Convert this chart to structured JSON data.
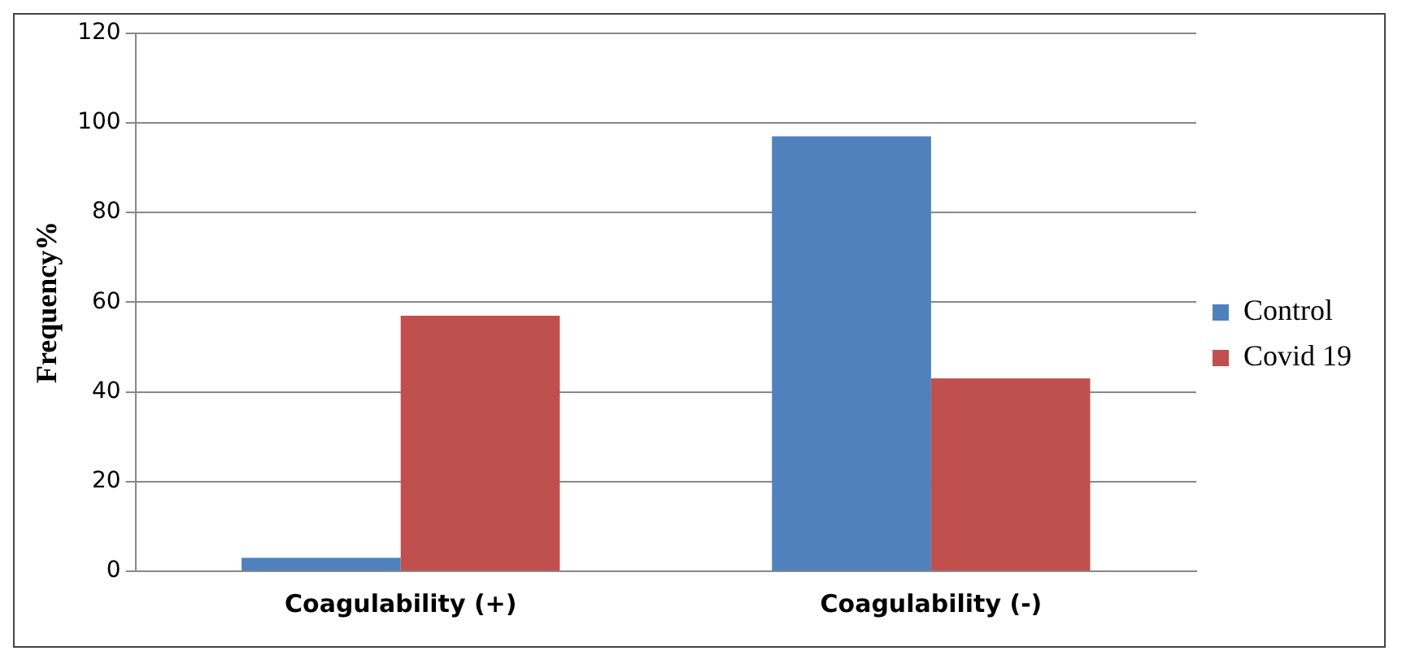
{
  "chart_data": {
    "type": "bar",
    "categories": [
      "Coagulability (+)",
      "Coagulability (-)"
    ],
    "ylabel": "Frequency%",
    "ylim": [
      0,
      120
    ],
    "yticks": [
      0,
      20,
      40,
      60,
      80,
      100,
      120
    ],
    "grid": "y",
    "legend": "right",
    "series": [
      {
        "name": "Control",
        "color": "#4f81bd",
        "values": [
          3,
          97
        ]
      },
      {
        "name": "Covid 19",
        "color": "#c0504d",
        "values": [
          57,
          43
        ]
      }
    ]
  }
}
